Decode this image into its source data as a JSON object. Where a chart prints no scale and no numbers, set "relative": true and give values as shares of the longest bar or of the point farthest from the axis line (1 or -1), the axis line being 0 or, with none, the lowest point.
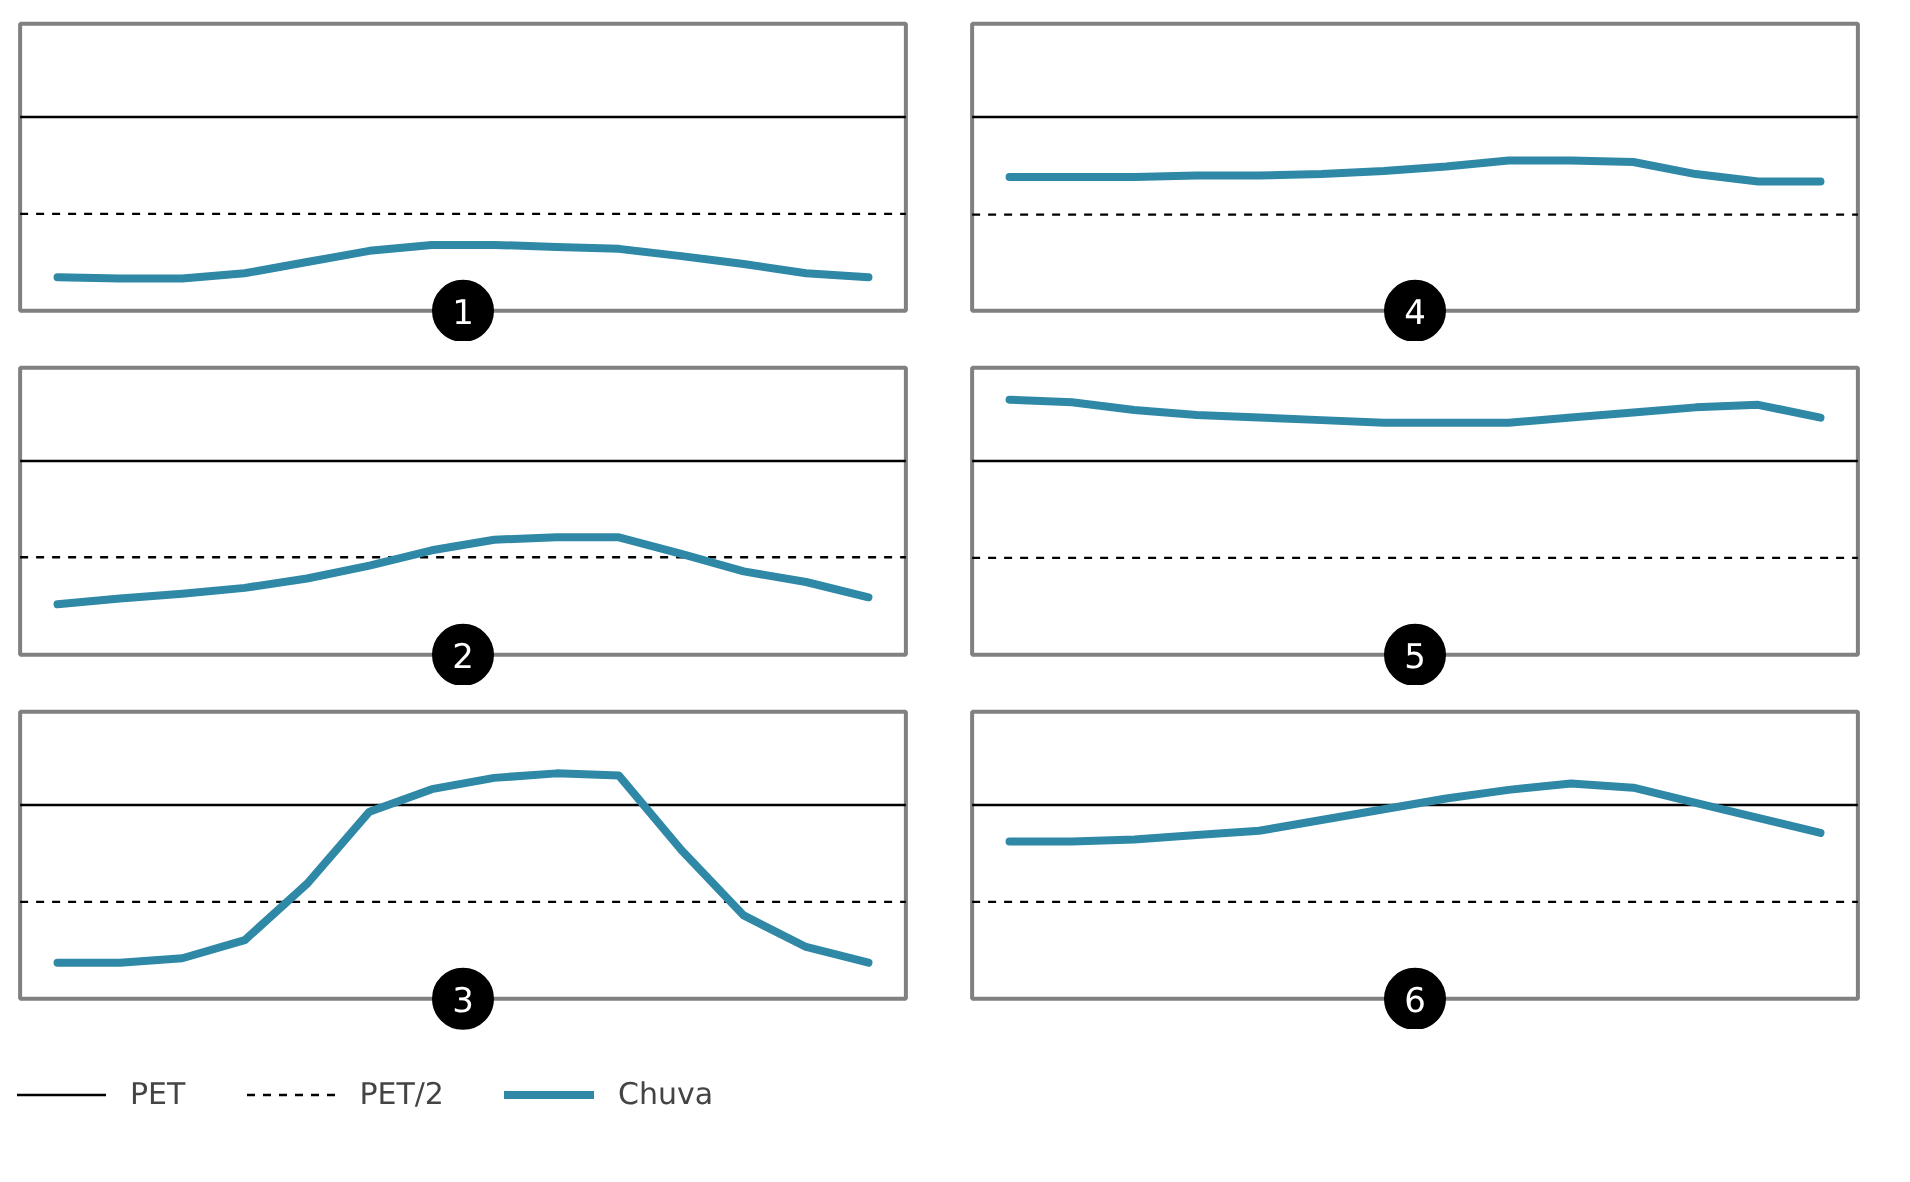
{
  "chart_data": [
    {
      "type": "line",
      "relative": true,
      "categories": [
        null,
        null,
        null,
        null,
        null,
        null,
        null,
        null,
        null,
        null,
        null,
        null,
        null,
        null
      ],
      "annotations": [
        "1"
      ],
      "series": [
        {
          "color": "#2e88a6",
          "values": [
            0.51,
            0.49,
            0.49,
            0.57,
            0.74,
            0.91,
            1,
            1,
            0.97,
            0.94,
            0.83,
            0.71,
            0.57,
            0.51
          ]
        }
      ],
      "ref_lines": [
        {
          "axis": "y",
          "value": 2.94,
          "color": "#000000",
          "line_style": "solid"
        },
        {
          "axis": "y",
          "value": 1.47,
          "color": "#000000",
          "line_style": "dashed"
        }
      ]
    },
    {
      "type": "line",
      "relative": true,
      "categories": [
        null,
        null,
        null,
        null,
        null,
        null,
        null,
        null,
        null,
        null,
        null,
        null,
        null,
        null
      ],
      "annotations": [
        "4"
      ],
      "series": [
        {
          "color": "#2e88a6",
          "values": [
            0.89,
            0.89,
            0.89,
            0.9,
            0.9,
            0.91,
            0.93,
            0.96,
            1,
            1,
            0.99,
            0.91,
            0.86,
            0.86
          ]
        }
      ],
      "ref_lines": [
        {
          "axis": "y",
          "value": 1.29,
          "color": "#000000",
          "line_style": "solid"
        },
        {
          "axis": "y",
          "value": 0.64,
          "color": "#000000",
          "line_style": "dashed"
        }
      ]
    },
    {
      "type": "line",
      "relative": true,
      "categories": [
        null,
        null,
        null,
        null,
        null,
        null,
        null,
        null,
        null,
        null,
        null,
        null,
        null,
        null
      ],
      "annotations": [
        "2"
      ],
      "series": [
        {
          "color": "#2e88a6",
          "values": [
            0.43,
            0.48,
            0.52,
            0.57,
            0.65,
            0.76,
            0.89,
            0.98,
            1,
            1,
            0.86,
            0.71,
            0.62,
            0.49
          ]
        }
      ],
      "ref_lines": [
        {
          "axis": "y",
          "value": 1.65,
          "color": "#000000",
          "line_style": "solid"
        },
        {
          "axis": "y",
          "value": 0.83,
          "color": "#000000",
          "line_style": "dashed"
        }
      ]
    },
    {
      "type": "line",
      "relative": true,
      "categories": [
        null,
        null,
        null,
        null,
        null,
        null,
        null,
        null,
        null,
        null,
        null,
        null,
        null,
        null
      ],
      "annotations": [
        "5"
      ],
      "series": [
        {
          "color": "#2e88a6",
          "values": [
            1,
            0.99,
            0.96,
            0.94,
            0.93,
            0.92,
            0.91,
            0.91,
            0.91,
            0.93,
            0.95,
            0.97,
            0.98,
            0.93
          ]
        }
      ],
      "ref_lines": [
        {
          "axis": "y",
          "value": 0.76,
          "color": "#000000",
          "line_style": "solid"
        },
        {
          "axis": "y",
          "value": 0.38,
          "color": "#000000",
          "line_style": "dashed"
        }
      ]
    },
    {
      "type": "line",
      "relative": true,
      "categories": [
        null,
        null,
        null,
        null,
        null,
        null,
        null,
        null,
        null,
        null,
        null,
        null,
        null,
        null
      ],
      "annotations": [
        "3"
      ],
      "legend": "bottom",
      "series": [
        {
          "name": "Chuva",
          "color": "#2e88a6",
          "values": [
            0.16,
            0.16,
            0.18,
            0.26,
            0.51,
            0.83,
            0.93,
            0.98,
            1,
            0.99,
            0.66,
            0.37,
            0.23,
            0.16
          ]
        }
      ],
      "ref_lines": [
        {
          "axis": "y",
          "value": 0.86,
          "label": "PET",
          "color": "#000000",
          "line_style": "solid"
        },
        {
          "axis": "y",
          "value": 0.43,
          "label": "PET/2",
          "color": "#000000",
          "line_style": "dashed"
        }
      ]
    },
    {
      "type": "line",
      "relative": true,
      "categories": [
        null,
        null,
        null,
        null,
        null,
        null,
        null,
        null,
        null,
        null,
        null,
        null,
        null,
        null
      ],
      "annotations": [
        "6"
      ],
      "series": [
        {
          "color": "#2e88a6",
          "values": [
            0.73,
            0.73,
            0.74,
            0.76,
            0.78,
            0.83,
            0.88,
            0.93,
            0.97,
            1,
            0.98,
            0.91,
            0.84,
            0.77
          ]
        }
      ],
      "ref_lines": [
        {
          "axis": "y",
          "value": 0.9,
          "color": "#000000",
          "line_style": "solid"
        },
        {
          "axis": "y",
          "value": 0.45,
          "color": "#000000",
          "line_style": "dashed"
        }
      ]
    }
  ]
}
